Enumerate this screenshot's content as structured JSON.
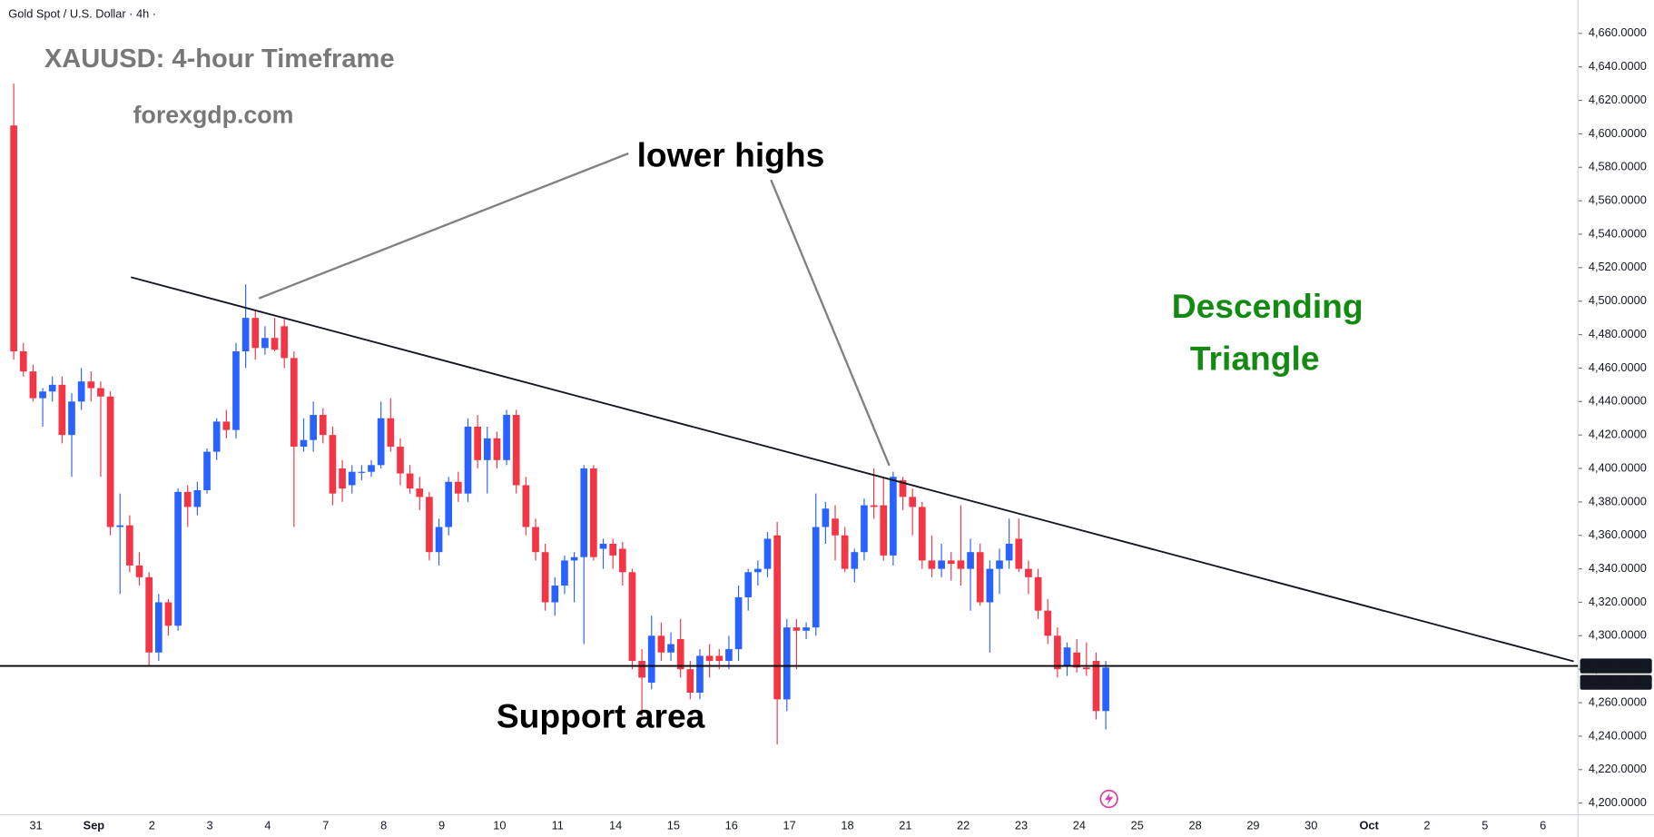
{
  "chart_data": {
    "type": "candlestick",
    "header": "Gold Spot / U.S. Dollar · 4h ·",
    "title": "XAUUSD: 4-hour Timeframe",
    "subtitle": "forexgdp.com",
    "annotations": {
      "lower_highs": "lower highs",
      "pattern_line1": "Descending",
      "pattern_line2": "Triangle",
      "support": "Support area"
    },
    "up_color": "#2962ff",
    "down_color": "#f23645",
    "x_labels": [
      "31",
      "Sep",
      "2",
      "3",
      "4",
      "7",
      "8",
      "9",
      "10",
      "11",
      "14",
      "15",
      "16",
      "17",
      "18",
      "21",
      "22",
      "23",
      "24",
      "25",
      "28",
      "29",
      "30",
      "Oct",
      "2",
      "5",
      "6"
    ],
    "ylim": [
      4193,
      4680
    ],
    "yticks": [
      {
        "value": 4200,
        "label": "4,200.0000"
      },
      {
        "value": 4220,
        "label": "4,220.0000"
      },
      {
        "value": 4240,
        "label": "4,240.0000"
      },
      {
        "value": 4260,
        "label": "4,260.0000"
      },
      {
        "value": 4280,
        "label": "4,280.0000"
      },
      {
        "value": 4300,
        "label": "4,300.0000"
      },
      {
        "value": 4320,
        "label": "4,320.0000"
      },
      {
        "value": 4340,
        "label": "4,340.0000"
      },
      {
        "value": 4360,
        "label": "4,360.0000"
      },
      {
        "value": 4380,
        "label": "4,380.0000"
      },
      {
        "value": 4400,
        "label": "4,400.0000"
      },
      {
        "value": 4420,
        "label": "4,420.0000"
      },
      {
        "value": 4440,
        "label": "4,440.0000"
      },
      {
        "value": 4460,
        "label": "4,460.0000"
      },
      {
        "value": 4480,
        "label": "4,480.0000"
      },
      {
        "value": 4500,
        "label": "4,500.0000"
      },
      {
        "value": 4520,
        "label": "4,520.0000"
      },
      {
        "value": 4540,
        "label": "4,540.0000"
      },
      {
        "value": 4560,
        "label": "4,560.0000"
      },
      {
        "value": 4580,
        "label": "4,580.0000"
      },
      {
        "value": 4600,
        "label": "4,600.0000"
      },
      {
        "value": 4620,
        "label": "4,620.0000"
      },
      {
        "value": 4640,
        "label": "4,640.0000"
      },
      {
        "value": 4660,
        "label": "4,660.0000"
      }
    ],
    "support_level": {
      "value": 4281.95,
      "label": "4,281.9500"
    },
    "last_price": {
      "value": 4281.0136,
      "label": "4,281.0136"
    },
    "ohlc": [
      [
        4605,
        4630,
        4465,
        4470
      ],
      [
        4470,
        4475,
        4455,
        4458
      ],
      [
        4458,
        4462,
        4440,
        4442
      ],
      [
        4442,
        4448,
        4425,
        4446
      ],
      [
        4446,
        4455,
        4440,
        4450
      ],
      [
        4450,
        4455,
        4415,
        4420
      ],
      [
        4420,
        4445,
        4395,
        4440
      ],
      [
        4440,
        4460,
        4435,
        4452
      ],
      [
        4452,
        4458,
        4440,
        4448
      ],
      [
        4448,
        4452,
        4395,
        4443
      ],
      [
        4443,
        4446,
        4360,
        4365
      ],
      [
        4365,
        4385,
        4325,
        4366
      ],
      [
        4366,
        4372,
        4338,
        4342
      ],
      [
        4342,
        4350,
        4330,
        4335
      ],
      [
        4335,
        4338,
        4282,
        4290
      ],
      [
        4290,
        4325,
        4285,
        4320
      ],
      [
        4320,
        4322,
        4300,
        4306
      ],
      [
        4306,
        4388,
        4303,
        4386
      ],
      [
        4386,
        4390,
        4365,
        4377
      ],
      [
        4377,
        4392,
        4372,
        4387
      ],
      [
        4387,
        4412,
        4385,
        4410
      ],
      [
        4410,
        4430,
        4405,
        4428
      ],
      [
        4428,
        4435,
        4418,
        4423
      ],
      [
        4423,
        4475,
        4418,
        4470
      ],
      [
        4470,
        4510,
        4460,
        4490
      ],
      [
        4490,
        4495,
        4465,
        4472
      ],
      [
        4472,
        4485,
        4468,
        4478
      ],
      [
        4478,
        4490,
        4470,
        4471
      ],
      [
        4485,
        4490,
        4460,
        4466
      ],
      [
        4466,
        4470,
        4365,
        4413
      ],
      [
        4413,
        4430,
        4410,
        4417
      ],
      [
        4417,
        4440,
        4410,
        4432
      ],
      [
        4432,
        4436,
        4415,
        4420
      ],
      [
        4420,
        4425,
        4378,
        4385
      ],
      [
        4400,
        4405,
        4380,
        4388
      ],
      [
        4390,
        4402,
        4385,
        4398
      ],
      [
        4398,
        4402,
        4393,
        4398
      ],
      [
        4398,
        4405,
        4395,
        4402
      ],
      [
        4402,
        4440,
        4400,
        4430
      ],
      [
        4430,
        4442,
        4410,
        4413
      ],
      [
        4413,
        4418,
        4390,
        4397
      ],
      [
        4397,
        4402,
        4385,
        4388
      ],
      [
        4388,
        4395,
        4375,
        4383
      ],
      [
        4383,
        4386,
        4345,
        4350
      ],
      [
        4350,
        4370,
        4342,
        4365
      ],
      [
        4365,
        4395,
        4360,
        4392
      ],
      [
        4392,
        4398,
        4380,
        4385
      ],
      [
        4385,
        4430,
        4380,
        4425
      ],
      [
        4425,
        4432,
        4400,
        4405
      ],
      [
        4405,
        4425,
        4385,
        4418
      ],
      [
        4418,
        4422,
        4400,
        4405
      ],
      [
        4405,
        4435,
        4402,
        4432
      ],
      [
        4432,
        4435,
        4385,
        4390
      ],
      [
        4390,
        4395,
        4360,
        4365
      ],
      [
        4365,
        4370,
        4345,
        4350
      ],
      [
        4350,
        4355,
        4315,
        4320
      ],
      [
        4320,
        4335,
        4312,
        4330
      ],
      [
        4330,
        4348,
        4325,
        4345
      ],
      [
        4345,
        4350,
        4320,
        4347
      ],
      [
        4347,
        4402,
        4295,
        4400
      ],
      [
        4400,
        4402,
        4345,
        4347
      ],
      [
        4352,
        4358,
        4340,
        4355
      ],
      [
        4355,
        4358,
        4340,
        4348
      ],
      [
        4352,
        4356,
        4330,
        4338
      ],
      [
        4338,
        4340,
        4280,
        4285
      ],
      [
        4285,
        4292,
        4252,
        4275
      ],
      [
        4272,
        4312,
        4268,
        4300
      ],
      [
        4300,
        4308,
        4285,
        4290
      ],
      [
        4290,
        4302,
        4285,
        4295
      ],
      [
        4298,
        4310,
        4275,
        4280
      ],
      [
        4280,
        4285,
        4262,
        4266
      ],
      [
        4266,
        4292,
        4262,
        4288
      ],
      [
        4288,
        4295,
        4275,
        4285
      ],
      [
        4288,
        4292,
        4280,
        4285
      ],
      [
        4285,
        4300,
        4280,
        4292
      ],
      [
        4292,
        4330,
        4285,
        4323
      ],
      [
        4323,
        4340,
        4315,
        4338
      ],
      [
        4338,
        4345,
        4330,
        4340
      ],
      [
        4340,
        4362,
        4335,
        4358
      ],
      [
        4360,
        4368,
        4235,
        4262
      ],
      [
        4262,
        4310,
        4255,
        4305
      ],
      [
        4305,
        4310,
        4280,
        4303
      ],
      [
        4303,
        4308,
        4298,
        4305
      ],
      [
        4305,
        4385,
        4300,
        4365
      ],
      [
        4365,
        4380,
        4355,
        4376
      ],
      [
        4370,
        4378,
        4345,
        4360
      ],
      [
        4360,
        4365,
        4338,
        4340
      ],
      [
        4340,
        4352,
        4332,
        4350
      ],
      [
        4350,
        4382,
        4345,
        4378
      ],
      [
        4378,
        4400,
        4370,
        4377
      ],
      [
        4378,
        4395,
        4345,
        4348
      ],
      [
        4348,
        4398,
        4342,
        4395
      ],
      [
        4393,
        4395,
        4375,
        4383
      ],
      [
        4383,
        4388,
        4360,
        4377
      ],
      [
        4377,
        4380,
        4340,
        4345
      ],
      [
        4345,
        4360,
        4335,
        4340
      ],
      [
        4340,
        4355,
        4335,
        4345
      ],
      [
        4345,
        4350,
        4333,
        4343
      ],
      [
        4345,
        4378,
        4330,
        4340
      ],
      [
        4340,
        4358,
        4315,
        4350
      ],
      [
        4350,
        4355,
        4318,
        4320
      ],
      [
        4320,
        4345,
        4290,
        4340
      ],
      [
        4340,
        4352,
        4325,
        4345
      ],
      [
        4345,
        4370,
        4340,
        4355
      ],
      [
        4358,
        4370,
        4338,
        4340
      ],
      [
        4340,
        4345,
        4325,
        4335
      ],
      [
        4335,
        4340,
        4310,
        4315
      ],
      [
        4315,
        4322,
        4295,
        4300
      ],
      [
        4300,
        4305,
        4275,
        4280
      ],
      [
        4282,
        4296,
        4276,
        4293
      ],
      [
        4290,
        4298,
        4278,
        4281
      ],
      [
        4281,
        4296,
        4276,
        4280
      ],
      [
        4285,
        4290,
        4250,
        4255
      ],
      [
        4255,
        4285,
        4244,
        4281.0136
      ]
    ]
  }
}
